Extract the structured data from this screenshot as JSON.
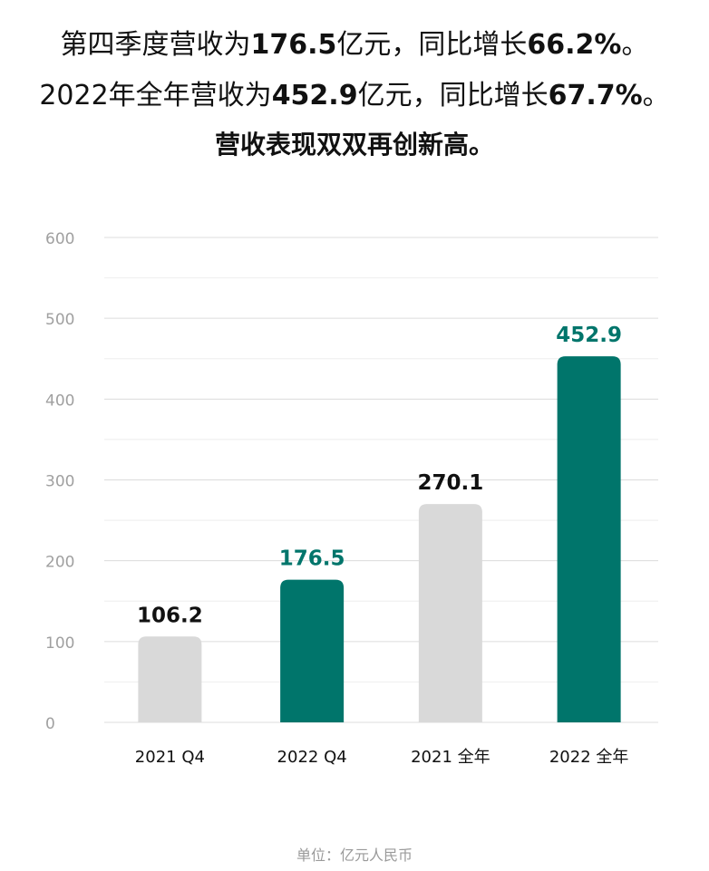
{
  "headline": {
    "line1": {
      "prefix": "第四季度营收为",
      "value1": "176.5",
      "mid": "亿元，同比增长",
      "value2": "66.2%",
      "suffix": "。"
    },
    "line2": {
      "prefix": "2022年全年营收为",
      "value1": "452.9",
      "mid": "亿元，同比增长",
      "value2": "67.7%",
      "suffix": "。"
    },
    "line3": "营收表现双双再创新高。"
  },
  "footnote": "单位：亿元人民币",
  "colors": {
    "highlight": "#00756b",
    "muted_bar": "#d9d9d9",
    "grid": "#dcdcdc",
    "tick_text": "#a0a0a0"
  },
  "chart_data": {
    "type": "bar",
    "categories": [
      "2021 Q4",
      "2022 Q4",
      "2021 全年",
      "2022 全年"
    ],
    "values": [
      106.2,
      176.5,
      270.1,
      452.9
    ],
    "value_labels": [
      "106.2",
      "176.5",
      "270.1",
      "452.9"
    ],
    "highlighted": [
      false,
      true,
      false,
      true
    ],
    "ylim": [
      0,
      600
    ],
    "yticks": [
      0,
      100,
      200,
      300,
      400,
      500,
      600
    ],
    "grid": true
  }
}
